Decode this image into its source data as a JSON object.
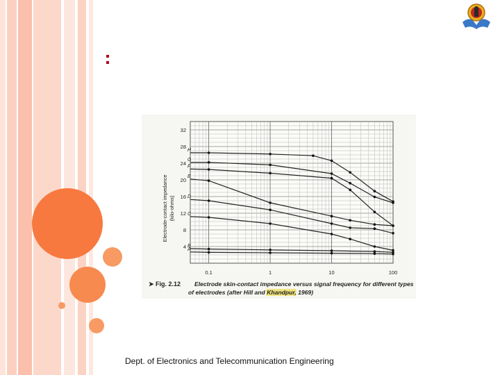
{
  "footer": {
    "text": "Dept. of Electronics and Telecommunication Engineering"
  },
  "slide": {
    "title_marker": ":"
  },
  "logo": {
    "icon": "institution-emblem-icon"
  },
  "colors": {
    "accent_orange": "#f7793f",
    "marker_red": "#b0001a",
    "curve": "#222222"
  },
  "chart_data": {
    "type": "line",
    "x_scale": "log",
    "xlim": [
      0.05,
      100
    ],
    "ylim": [
      0,
      34
    ],
    "grid": true,
    "ylabel": "Electrode-contact impedance (kilo-ohms)",
    "ylabel_lines": [
      "Electrode-contact impedance",
      "(kilo-ohms)"
    ],
    "x_ticks": [
      0.1,
      1,
      10,
      100
    ],
    "x_tick_labels": [
      "0.1",
      "1",
      "10",
      "100"
    ],
    "y_ticks": [
      4,
      8,
      12,
      16,
      20,
      24,
      28,
      32
    ],
    "y_tick_labels": [
      "4",
      "8",
      "12",
      "16",
      "20",
      "24",
      "28",
      "32"
    ],
    "caption": {
      "prefix": "➤ Fig. 2.12",
      "text_line1": "Electrode skin-contact impedance versus signal frequency for different types",
      "text_line2_a": "of electrodes (after Hill and",
      "text_line2_highlight": "Khandpur",
      "text_line2_b": ", 1969)"
    },
    "series": [
      {
        "name": "H",
        "x": [
          0.05,
          0.1,
          1,
          5,
          10,
          20,
          50,
          100
        ],
        "y": [
          26.5,
          26.5,
          26.2,
          25.8,
          24.6,
          21.8,
          17.3,
          14.8
        ]
      },
      {
        "name": "G",
        "x": [
          0.05,
          0.1,
          1,
          10,
          20,
          50,
          100
        ],
        "y": [
          24.2,
          24.2,
          23.6,
          21.5,
          19.2,
          15.9,
          14.5
        ]
      },
      {
        "name": "F",
        "x": [
          0.05,
          0.1,
          1,
          10,
          20,
          50,
          100
        ],
        "y": [
          22.6,
          22.5,
          21.6,
          20.4,
          17.6,
          12.3,
          9.0
        ]
      },
      {
        "name": "E",
        "x": [
          0.05,
          0.1,
          1,
          10,
          20,
          50,
          100
        ],
        "y": [
          20.2,
          19.8,
          14.5,
          11.3,
          10.3,
          9.3,
          9.0
        ]
      },
      {
        "name": "D",
        "x": [
          0.05,
          0.1,
          1,
          10,
          20,
          50,
          100
        ],
        "y": [
          15.3,
          15.0,
          12.8,
          9.5,
          8.5,
          8.3,
          7.2
        ]
      },
      {
        "name": "C",
        "x": [
          0.05,
          0.1,
          1,
          10,
          20,
          50,
          100
        ],
        "y": [
          11.2,
          11.0,
          9.5,
          7.0,
          5.8,
          4.0,
          3.1
        ]
      },
      {
        "name": "B",
        "x": [
          0.05,
          0.1,
          1,
          10,
          50,
          100
        ],
        "y": [
          3.5,
          3.4,
          3.2,
          3.0,
          2.8,
          2.6
        ]
      },
      {
        "name": "A",
        "x": [
          0.05,
          0.1,
          1,
          10,
          50,
          100
        ],
        "y": [
          2.7,
          2.6,
          2.5,
          2.4,
          2.3,
          2.2
        ]
      }
    ]
  }
}
